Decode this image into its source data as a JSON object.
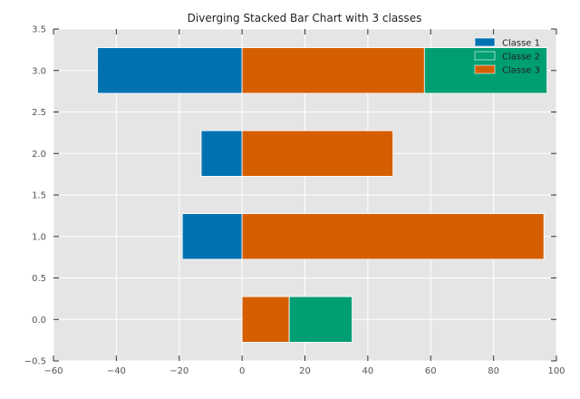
{
  "chart_data": {
    "type": "bar",
    "orientation": "horizontal",
    "stacking": "diverging",
    "title": "Diverging Stacked Bar Chart with 3 classes",
    "xlabel": "",
    "ylabel": "",
    "xlim": [
      -60,
      100
    ],
    "ylim": [
      -0.5,
      3.5
    ],
    "x_ticks": [
      -60,
      -40,
      -20,
      0,
      20,
      40,
      60,
      80,
      100
    ],
    "x_tick_labels": [
      "−60",
      "−40",
      "−20",
      "0",
      "20",
      "40",
      "60",
      "80",
      "100"
    ],
    "y_ticks": [
      -0.5,
      0.0,
      0.5,
      1.0,
      1.5,
      2.0,
      2.5,
      3.0,
      3.5
    ],
    "y_tick_labels": [
      "−0.5",
      "0.0",
      "0.5",
      "1.0",
      "1.5",
      "2.0",
      "2.5",
      "3.0",
      "3.5"
    ],
    "grid": true,
    "legend_position": "top-right",
    "categories": [
      0,
      1,
      2,
      3
    ],
    "series": [
      {
        "name": "Classe 1",
        "color": "#0072b2",
        "values": [
          0,
          -19,
          -13,
          -46
        ]
      },
      {
        "name": "Classe 2",
        "color": "#009e73",
        "values": [
          20,
          0,
          0,
          39
        ]
      },
      {
        "name": "Classe 3",
        "color": "#d55e00",
        "values": [
          15,
          96,
          48,
          58
        ]
      }
    ],
    "stack_order_positive": [
      "Classe 3",
      "Classe 2"
    ]
  }
}
